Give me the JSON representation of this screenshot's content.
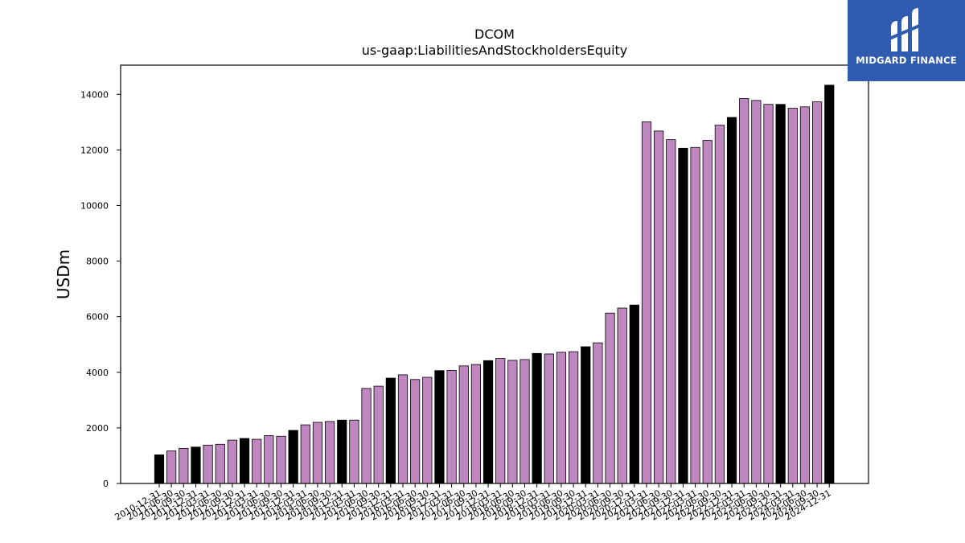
{
  "chart_data": {
    "type": "bar",
    "title": "DCOM",
    "subtitle": "us-gaap:LiabilitiesAndStockholdersEquity",
    "xlabel": "",
    "ylabel": "USDm",
    "ylim": [
      0,
      15050
    ],
    "yticks": [
      0,
      2000,
      4000,
      6000,
      8000,
      10000,
      12000,
      14000
    ],
    "colors": {
      "annual": "#000000",
      "quarter": "#bf87bf",
      "edge": "#000000"
    },
    "categories": [
      "2010-12-31",
      "2011-06-30",
      "2011-09-30",
      "2011-12-31",
      "2012-03-31",
      "2012-06-30",
      "2012-09-30",
      "2012-12-31",
      "2013-03-31",
      "2013-06-30",
      "2013-09-30",
      "2013-12-31",
      "2014-03-31",
      "2014-06-30",
      "2014-09-30",
      "2014-12-31",
      "2015-03-31",
      "2015-06-30",
      "2015-09-30",
      "2015-12-31",
      "2016-03-31",
      "2016-06-30",
      "2016-09-30",
      "2016-12-31",
      "2017-03-31",
      "2017-06-30",
      "2017-09-30",
      "2017-12-31",
      "2018-03-31",
      "2018-06-30",
      "2018-09-30",
      "2018-12-31",
      "2019-03-31",
      "2019-06-30",
      "2019-09-30",
      "2019-12-31",
      "2020-03-31",
      "2020-06-30",
      "2020-09-30",
      "2020-12-31",
      "2021-03-31",
      "2021-06-30",
      "2021-09-30",
      "2021-12-31",
      "2022-03-31",
      "2022-06-30",
      "2022-09-30",
      "2022-12-31",
      "2023-03-31",
      "2023-06-30",
      "2023-09-30",
      "2023-12-31",
      "2024-03-31",
      "2024-06-30",
      "2024-09-30",
      "2024-12-31"
    ],
    "values": [
      1030,
      1170,
      1260,
      1310,
      1380,
      1410,
      1560,
      1620,
      1590,
      1720,
      1700,
      1910,
      2110,
      2200,
      2230,
      2280,
      2280,
      3420,
      3500,
      3790,
      3910,
      3740,
      3820,
      4060,
      4070,
      4230,
      4280,
      4420,
      4500,
      4430,
      4460,
      4680,
      4660,
      4720,
      4740,
      4920,
      5060,
      6130,
      6310,
      6420,
      13010,
      12680,
      12370,
      12060,
      12090,
      12340,
      12890,
      13170,
      13850,
      13780,
      13640,
      13640,
      13500,
      13550,
      13730,
      14330
    ],
    "annual_flags": [
      true,
      false,
      false,
      true,
      false,
      false,
      false,
      true,
      false,
      false,
      false,
      true,
      false,
      false,
      false,
      true,
      false,
      false,
      false,
      true,
      false,
      false,
      false,
      true,
      false,
      false,
      false,
      true,
      false,
      false,
      false,
      true,
      false,
      false,
      false,
      true,
      false,
      false,
      false,
      true,
      false,
      false,
      false,
      true,
      false,
      false,
      false,
      true,
      false,
      false,
      false,
      true,
      false,
      false,
      false,
      true
    ]
  },
  "logo": {
    "text": "MIDGARD FINANCE",
    "background": "#2f5cb0"
  }
}
